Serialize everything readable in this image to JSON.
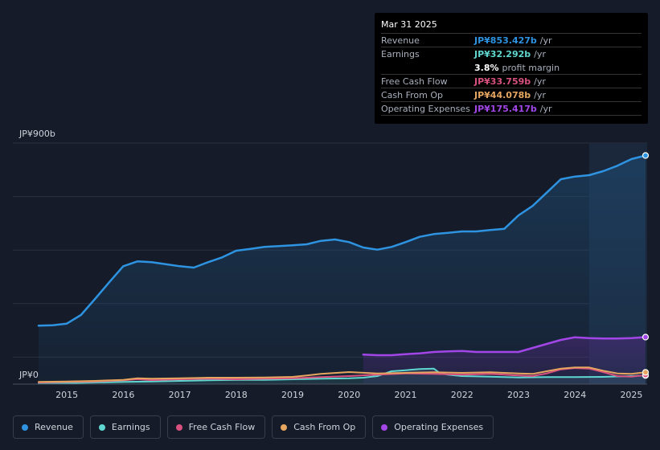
{
  "tooltip": {
    "date": "Mar 31 2025",
    "rows": {
      "revenue": {
        "label": "Revenue",
        "value": "JP¥853.427b",
        "unit": "/yr"
      },
      "earnings": {
        "label": "Earnings",
        "value": "JP¥32.292b",
        "unit": "/yr"
      },
      "margin": {
        "value": "3.8%",
        "text": "profit margin"
      },
      "fcf": {
        "label": "Free Cash Flow",
        "value": "JP¥33.759b",
        "unit": "/yr"
      },
      "cfo": {
        "label": "Cash From Op",
        "value": "JP¥44.078b",
        "unit": "/yr"
      },
      "opex": {
        "label": "Operating Expenses",
        "value": "JP¥175.417b",
        "unit": "/yr"
      }
    }
  },
  "legend": {
    "revenue": "Revenue",
    "earnings": "Earnings",
    "fcf": "Free Cash Flow",
    "cfo": "Cash From Op",
    "opex": "Operating Expenses"
  },
  "colors": {
    "revenue": "#2e93e0",
    "earnings": "#5fd7d0",
    "fcf": "#d9517f",
    "cfo": "#e6a660",
    "opex": "#a246e8"
  },
  "chart_data": {
    "type": "line",
    "title": "",
    "y_top_label": "JP¥900b",
    "y_bottom_label": "JP¥0",
    "ylim": [
      0,
      900
    ],
    "xlim": [
      2014.5,
      2025.25
    ],
    "x_ticks": [
      "2015",
      "2016",
      "2017",
      "2018",
      "2019",
      "2020",
      "2021",
      "2022",
      "2023",
      "2024",
      "2025"
    ],
    "forecast_start": 2024.25,
    "series": [
      {
        "key": "revenue",
        "name": "Revenue",
        "area": true,
        "x": [
          2014.5,
          2014.75,
          2015.0,
          2015.25,
          2015.5,
          2015.75,
          2016.0,
          2016.25,
          2016.5,
          2016.75,
          2017.0,
          2017.25,
          2017.5,
          2017.75,
          2018.0,
          2018.25,
          2018.5,
          2018.75,
          2019.0,
          2019.25,
          2019.5,
          2019.75,
          2020.0,
          2020.25,
          2020.5,
          2020.75,
          2021.0,
          2021.25,
          2021.5,
          2021.75,
          2022.0,
          2022.25,
          2022.5,
          2022.75,
          2023.0,
          2023.25,
          2023.5,
          2023.75,
          2024.0,
          2024.25,
          2024.5,
          2024.75,
          2025.0,
          2025.25
        ],
        "y": [
          218,
          220,
          226,
          258,
          318,
          380,
          440,
          458,
          455,
          448,
          440,
          435,
          455,
          473,
          498,
          505,
          512,
          515,
          518,
          522,
          535,
          540,
          530,
          510,
          502,
          512,
          530,
          550,
          560,
          565,
          570,
          570,
          575,
          580,
          630,
          665,
          715,
          765,
          775,
          780,
          795,
          815,
          840,
          853.427
        ]
      },
      {
        "key": "opex",
        "name": "Operating Expenses",
        "area": true,
        "x": [
          2020.25,
          2020.5,
          2020.75,
          2021.0,
          2021.25,
          2021.5,
          2021.75,
          2022.0,
          2022.25,
          2022.5,
          2022.75,
          2023.0,
          2023.25,
          2023.5,
          2023.75,
          2024.0,
          2024.25,
          2024.5,
          2024.75,
          2025.0,
          2025.25
        ],
        "y": [
          110,
          108,
          108,
          112,
          115,
          120,
          122,
          124,
          120,
          120,
          120,
          120,
          135,
          150,
          165,
          175,
          172,
          170,
          170,
          172,
          175.417
        ]
      },
      {
        "key": "earnings",
        "name": "Earnings",
        "area": true,
        "x": [
          2014.5,
          2015.0,
          2015.5,
          2016.0,
          2016.5,
          2017.0,
          2017.5,
          2018.0,
          2018.5,
          2019.0,
          2019.5,
          2020.0,
          2020.25,
          2020.5,
          2020.75,
          2021.0,
          2021.25,
          2021.5,
          2021.6,
          2021.75,
          2022.0,
          2022.5,
          2023.0,
          2023.5,
          2024.0,
          2024.5,
          2025.0,
          2025.25
        ],
        "y": [
          2,
          4,
          6,
          8,
          10,
          12,
          14,
          16,
          16,
          18,
          20,
          22,
          24,
          30,
          48,
          52,
          56,
          58,
          42,
          35,
          30,
          28,
          25,
          26,
          26,
          27,
          30,
          32.292
        ]
      },
      {
        "key": "fcf",
        "name": "Free Cash Flow",
        "area": false,
        "x": [
          2014.5,
          2015.0,
          2015.5,
          2016.0,
          2016.25,
          2016.5,
          2017.0,
          2017.5,
          2018.0,
          2018.5,
          2019.0,
          2019.25,
          2019.5,
          2020.0,
          2020.5,
          2021.0,
          2021.5,
          2022.0,
          2022.5,
          2023.0,
          2023.25,
          2023.5,
          2023.75,
          2024.0,
          2024.25,
          2024.5,
          2024.75,
          2025.0,
          2025.25
        ],
        "y": [
          6,
          8,
          10,
          14,
          18,
          15,
          18,
          20,
          18,
          20,
          22,
          24,
          26,
          30,
          35,
          40,
          38,
          35,
          38,
          32,
          30,
          40,
          55,
          60,
          58,
          45,
          30,
          28,
          33.759
        ]
      },
      {
        "key": "cfo",
        "name": "Cash From Op",
        "area": false,
        "x": [
          2014.5,
          2015.0,
          2015.5,
          2016.0,
          2016.25,
          2016.5,
          2017.0,
          2017.5,
          2018.0,
          2018.5,
          2019.0,
          2019.25,
          2019.5,
          2020.0,
          2020.5,
          2021.0,
          2021.5,
          2022.0,
          2022.5,
          2023.0,
          2023.25,
          2023.5,
          2023.75,
          2024.0,
          2024.25,
          2024.5,
          2024.75,
          2025.0,
          2025.25
        ],
        "y": [
          8,
          10,
          12,
          16,
          22,
          20,
          22,
          24,
          24,
          25,
          27,
          32,
          38,
          45,
          40,
          42,
          44,
          42,
          44,
          40,
          38,
          48,
          58,
          62,
          62,
          50,
          40,
          38,
          44.078
        ]
      }
    ]
  }
}
